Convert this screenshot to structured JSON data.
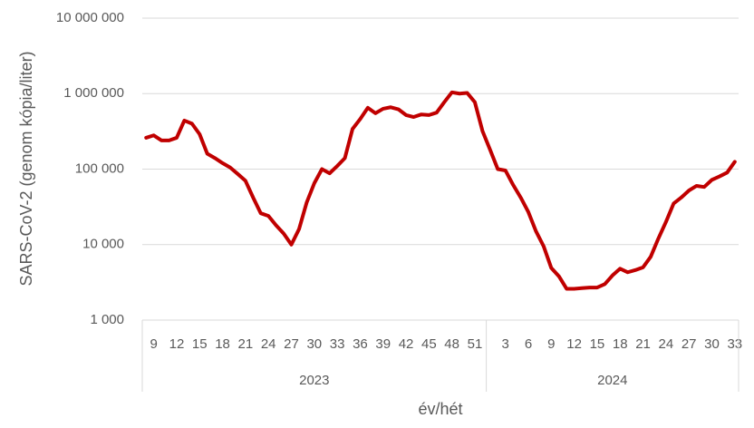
{
  "chart_data": {
    "type": "line",
    "y_axis_label": "SARS-CoV-2 (genom kópia/liter)",
    "x_axis_label": "év/hét",
    "log_scale": true,
    "grid": true,
    "color": "#c00000",
    "ylim": [
      1000,
      10000000
    ],
    "yticks": [
      {
        "value": 1000,
        "label": "1 000"
      },
      {
        "value": 10000,
        "label": "10 000"
      },
      {
        "value": 100000,
        "label": "100 000"
      },
      {
        "value": 1000000,
        "label": "1 000 000"
      },
      {
        "value": 10000000,
        "label": "10 000 000"
      }
    ],
    "groups": [
      {
        "name": "2023",
        "categories": [
          null,
          9,
          null,
          null,
          12,
          null,
          null,
          15,
          null,
          null,
          18,
          null,
          null,
          21,
          null,
          null,
          24,
          null,
          null,
          27,
          null,
          null,
          30,
          null,
          null,
          33,
          null,
          null,
          36,
          null,
          null,
          39,
          null,
          null,
          42,
          null,
          null,
          45,
          null,
          null,
          48,
          null,
          null,
          51,
          null
        ]
      },
      {
        "name": "2024",
        "categories": [
          null,
          null,
          3,
          null,
          null,
          6,
          null,
          null,
          9,
          null,
          null,
          12,
          null,
          null,
          15,
          null,
          null,
          18,
          null,
          null,
          21,
          null,
          null,
          24,
          null,
          null,
          27,
          null,
          null,
          30,
          null,
          null,
          33
        ]
      }
    ],
    "values": [
      260000,
      280000,
      240000,
      240000,
      260000,
      440000,
      400000,
      290000,
      160000,
      140000,
      120000,
      105000,
      86000,
      70000,
      42000,
      26000,
      24000,
      18000,
      14000,
      10000,
      16000,
      36000,
      65000,
      100000,
      88000,
      110000,
      140000,
      340000,
      460000,
      650000,
      550000,
      630000,
      660000,
      620000,
      520000,
      490000,
      530000,
      520000,
      560000,
      770000,
      1040000,
      1000000,
      1020000,
      770000,
      320000,
      180000,
      100000,
      96000,
      62000,
      42000,
      27000,
      15000,
      9500,
      4900,
      3800,
      2600,
      2600,
      2650,
      2700,
      2700,
      3000,
      3900,
      4800,
      4300,
      4600,
      5000,
      6900,
      12000,
      20000,
      35000,
      42000,
      52000,
      60000,
      58000,
      72000,
      80000,
      90000,
      125000
    ]
  }
}
